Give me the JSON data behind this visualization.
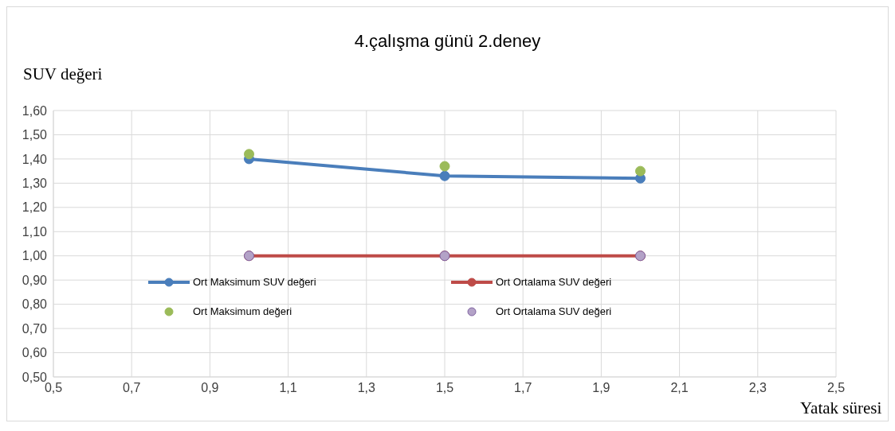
{
  "chart_data": {
    "type": "line",
    "title": "4.çalışma günü 2.deney",
    "ylabel": "SUV değeri",
    "xlabel": "Yatak süresi",
    "xlim": [
      0.5,
      2.5
    ],
    "xticks": [
      {
        "value": 0.5,
        "label": "0,5"
      },
      {
        "value": 0.7,
        "label": "0,7"
      },
      {
        "value": 0.9,
        "label": "0,9"
      },
      {
        "value": 1.1,
        "label": "1,1"
      },
      {
        "value": 1.3,
        "label": "1,3"
      },
      {
        "value": 1.5,
        "label": "1,5"
      },
      {
        "value": 1.7,
        "label": "1,7"
      },
      {
        "value": 1.9,
        "label": "1,9"
      },
      {
        "value": 2.1,
        "label": "2,1"
      },
      {
        "value": 2.3,
        "label": "2,3"
      },
      {
        "value": 2.5,
        "label": "2,5"
      }
    ],
    "ylim": [
      0.5,
      1.6
    ],
    "yticks": [
      {
        "value": 0.5,
        "label": "0,50"
      },
      {
        "value": 0.6,
        "label": "0,60"
      },
      {
        "value": 0.7,
        "label": "0,70"
      },
      {
        "value": 0.8,
        "label": "0,80"
      },
      {
        "value": 0.9,
        "label": "0,90"
      },
      {
        "value": 1.0,
        "label": "1,00"
      },
      {
        "value": 1.1,
        "label": "1,10"
      },
      {
        "value": 1.2,
        "label": "1,20"
      },
      {
        "value": 1.3,
        "label": "1,30"
      },
      {
        "value": 1.4,
        "label": "1,40"
      },
      {
        "value": 1.5,
        "label": "1,50"
      },
      {
        "value": 1.6,
        "label": "1,60"
      }
    ],
    "x": [
      1.0,
      1.5,
      2.0
    ],
    "series": [
      {
        "name": "Ort Maksimum SUV değeri",
        "color": "#4a7ebb",
        "values": [
          1.4,
          1.33,
          1.32
        ]
      },
      {
        "name": "Ort Ortalama SUV değeri",
        "color": "#be4b48",
        "values": [
          1.0,
          1.0,
          1.0
        ]
      },
      {
        "name": "Ort Maksimum değeri",
        "type": "scatter",
        "color": "#9bbb59",
        "values": [
          1.42,
          1.37,
          1.35
        ]
      },
      {
        "name": "Ort Ortalama SUV değeri",
        "type": "scatter",
        "color": "#b3a2c7",
        "values": [
          1.0,
          1.0,
          1.0
        ]
      }
    ],
    "grid": true,
    "legend": "bottom",
    "marker": "circle",
    "line_style": "solid"
  }
}
